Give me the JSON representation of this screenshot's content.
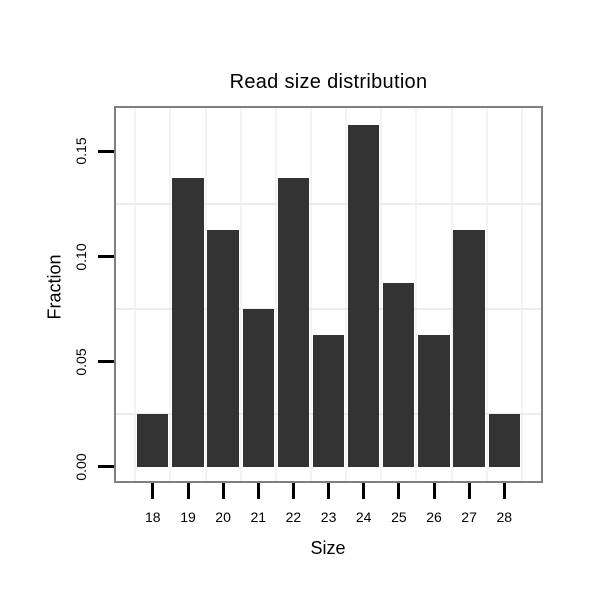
{
  "chart_data": {
    "type": "bar",
    "title": "Read size distribution",
    "xlabel": "Size",
    "ylabel": "Fraction",
    "categories": [
      "18",
      "19",
      "20",
      "21",
      "22",
      "23",
      "24",
      "25",
      "26",
      "27",
      "28"
    ],
    "values": [
      0.025,
      0.1375,
      0.1125,
      0.075,
      0.1375,
      0.0625,
      0.1625,
      0.0875,
      0.0625,
      0.1125,
      0.025
    ],
    "y_ticks": [
      {
        "value": 0.0,
        "label": "0.00"
      },
      {
        "value": 0.05,
        "label": "0.05"
      },
      {
        "value": 0.1,
        "label": "0.10"
      },
      {
        "value": 0.15,
        "label": "0.15"
      }
    ],
    "ylim": [
      -0.00682,
      0.17063
    ],
    "minor_gridlines_y": [
      0.025,
      0.075,
      0.125
    ],
    "grid": "faint horizontal lines between ticks, faint vertical lines at category boundaries",
    "legend_position": "none",
    "colors": {
      "bar": "#333333",
      "panel_border": "#7f7f7f",
      "grid_horizontal": "#ececec",
      "grid_vertical": "#f4f4f4",
      "tick": "#000000",
      "text": "#000000",
      "background": "#ffffff"
    }
  }
}
